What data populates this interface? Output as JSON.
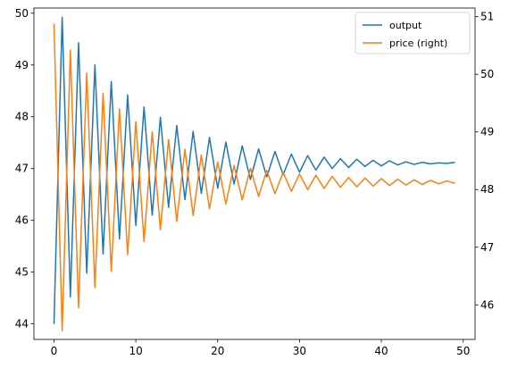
{
  "chart_data": {
    "type": "line",
    "title": "",
    "xlabel": "",
    "ylabel": "",
    "ylabel_right": "",
    "xlim": [
      -2.45,
      51.45
    ],
    "ylim": [
      43.7,
      50.1
    ],
    "ylim_right": [
      45.4,
      51.15
    ],
    "xticks": [
      0,
      10,
      20,
      30,
      40,
      50
    ],
    "yticks": [
      44,
      45,
      46,
      47,
      48,
      49,
      50
    ],
    "yticks_right": [
      46,
      47,
      48,
      49,
      50,
      51
    ],
    "grid": false,
    "legend_position": "top-right",
    "x": [
      0,
      1,
      2,
      3,
      4,
      5,
      6,
      7,
      8,
      9,
      10,
      11,
      12,
      13,
      14,
      15,
      16,
      17,
      18,
      19,
      20,
      21,
      22,
      23,
      24,
      25,
      26,
      27,
      28,
      29,
      30,
      31,
      32,
      33,
      34,
      35,
      36,
      37,
      38,
      39,
      40,
      41,
      42,
      43,
      44,
      45,
      46,
      47,
      48,
      49
    ],
    "series": [
      {
        "name": "output",
        "axis": "left",
        "color": "#1f77b4",
        "values": [
          44.0,
          49.92,
          44.52,
          49.43,
          44.98,
          49.0,
          45.35,
          48.68,
          45.64,
          48.42,
          45.9,
          48.19,
          46.1,
          47.99,
          46.25,
          47.83,
          46.4,
          47.72,
          46.52,
          47.6,
          46.62,
          47.51,
          46.7,
          47.44,
          46.79,
          47.38,
          46.84,
          47.33,
          46.88,
          47.28,
          46.93,
          47.25,
          46.97,
          47.22,
          47.0,
          47.19,
          47.02,
          47.18,
          47.04,
          47.16,
          47.05,
          47.15,
          47.07,
          47.13,
          47.08,
          47.12,
          47.09,
          47.11,
          47.1,
          47.12
        ]
      },
      {
        "name": "price (right)",
        "axis": "right",
        "color": "#ff7f0e",
        "values": [
          50.88,
          45.55,
          50.42,
          45.95,
          50.02,
          46.3,
          49.67,
          46.58,
          49.4,
          46.87,
          49.18,
          47.1,
          49.0,
          47.3,
          48.87,
          47.45,
          48.7,
          47.55,
          48.6,
          47.67,
          48.48,
          47.75,
          48.42,
          47.82,
          48.37,
          47.88,
          48.33,
          47.93,
          48.3,
          47.97,
          48.27,
          48.0,
          48.25,
          48.02,
          48.23,
          48.04,
          48.21,
          48.05,
          48.2,
          48.06,
          48.19,
          48.07,
          48.18,
          48.08,
          48.17,
          48.09,
          48.16,
          48.1,
          48.15,
          48.11
        ]
      }
    ]
  }
}
